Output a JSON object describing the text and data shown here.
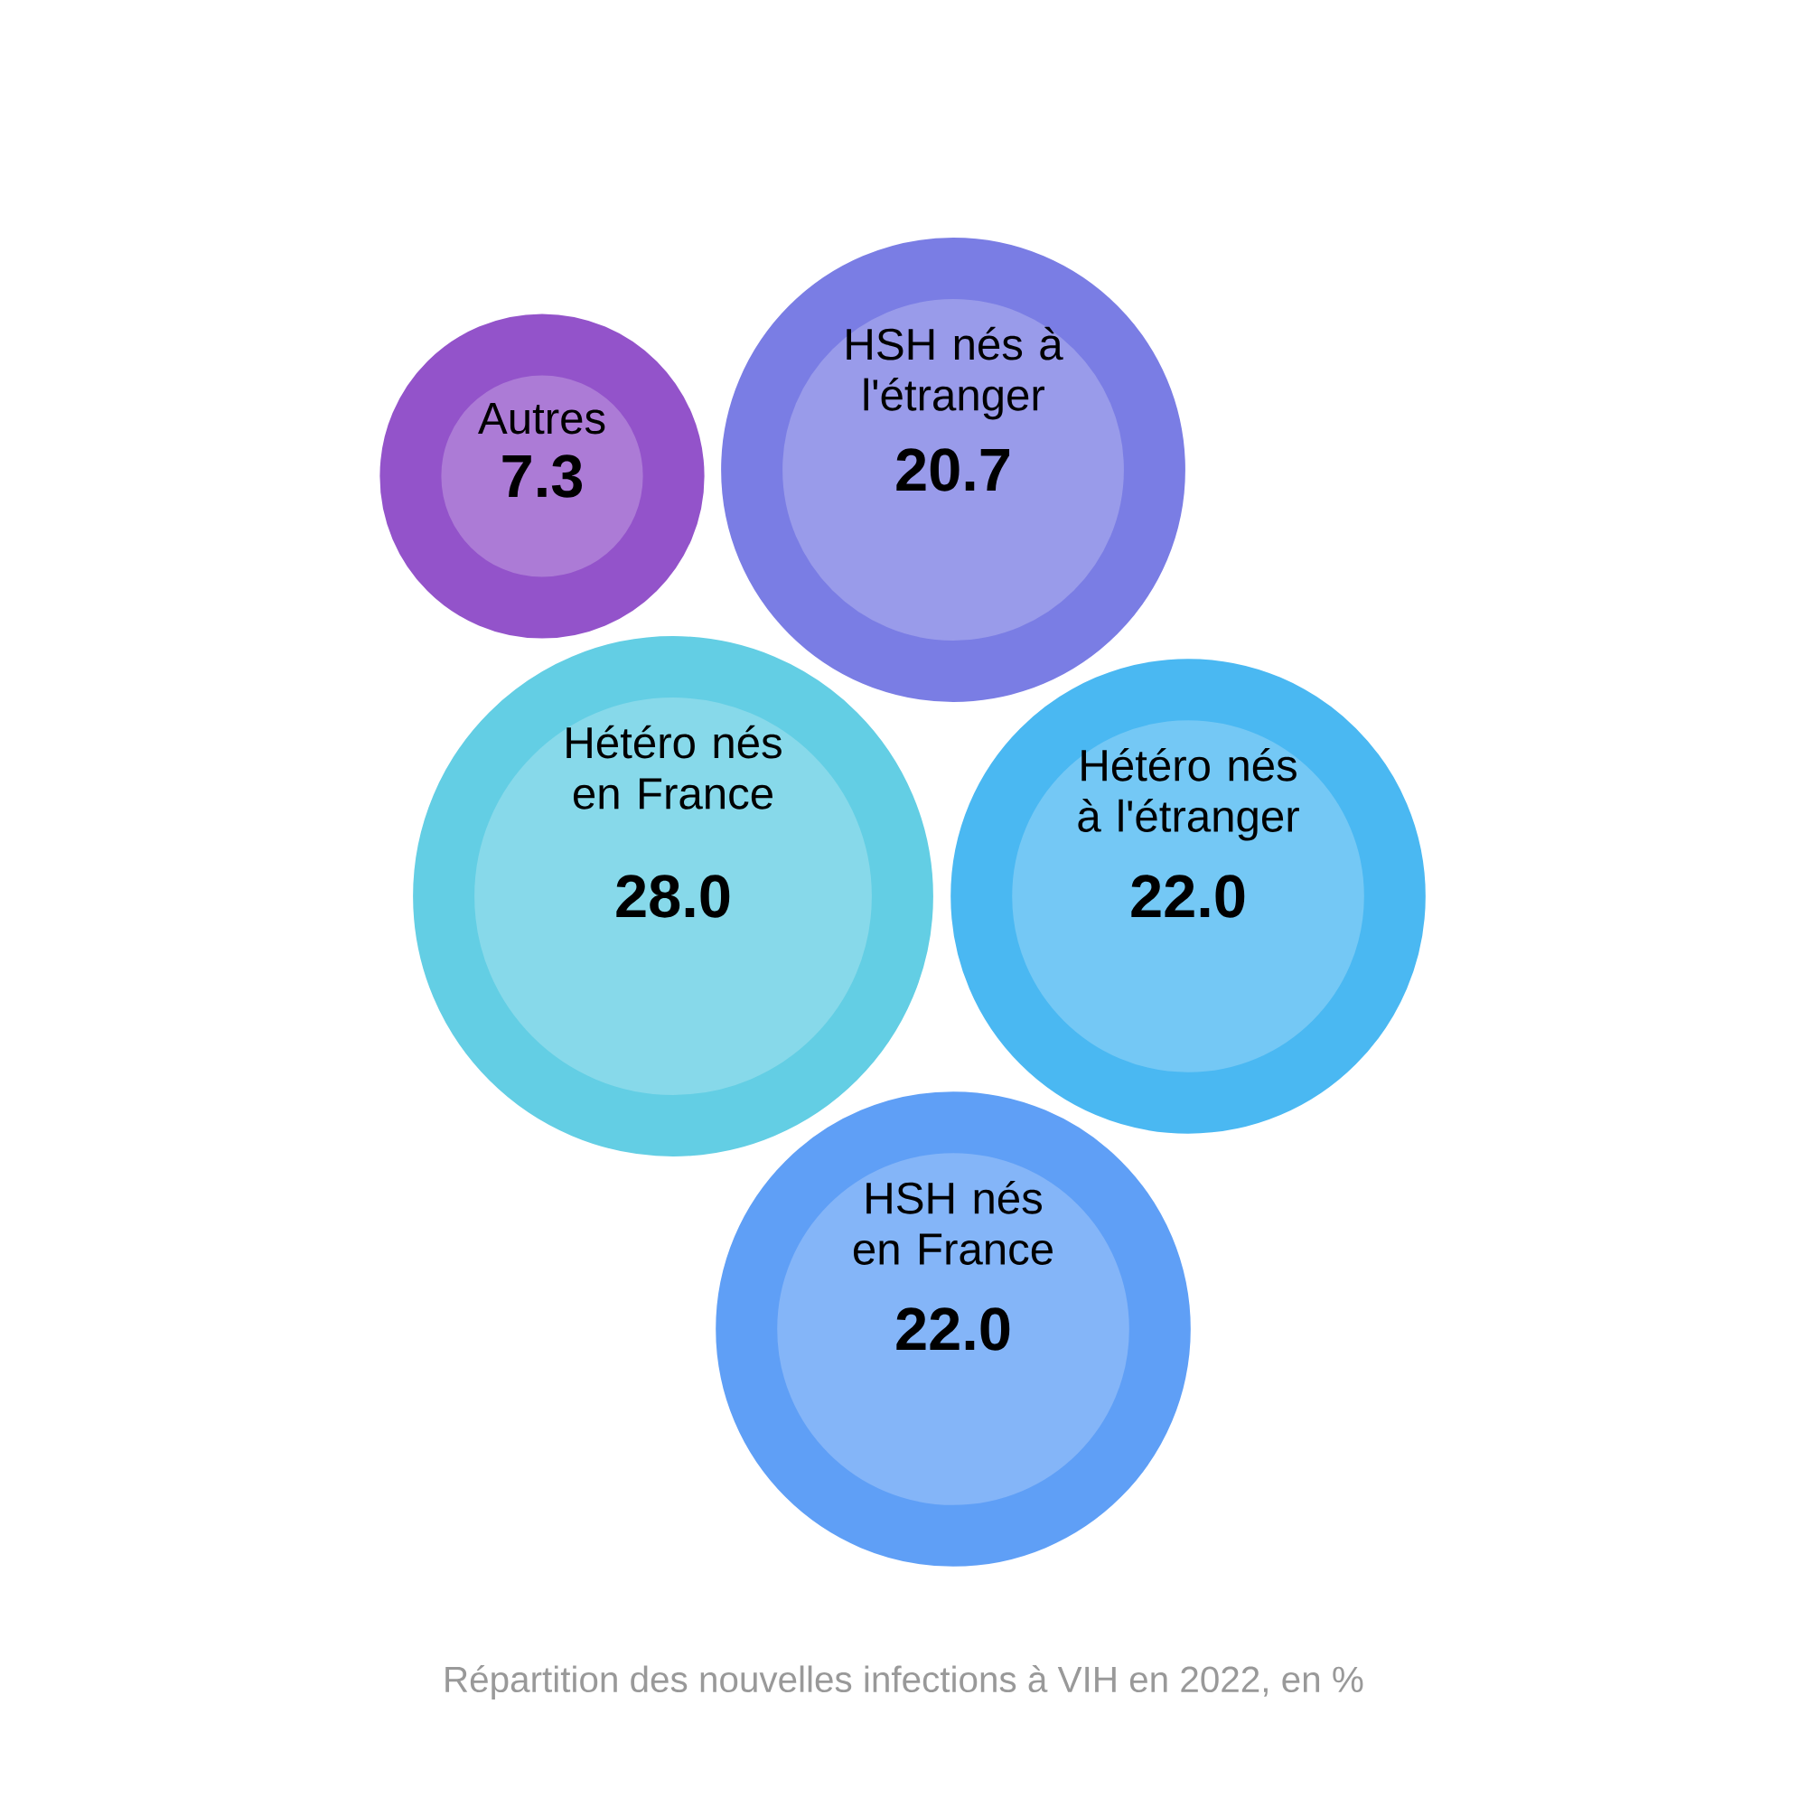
{
  "chart_data": {
    "type": "other",
    "categories": [
      "Autres",
      "HSH nés à l'étranger",
      "Hétéro nés en France",
      "Hétéro nés à l'étranger",
      "HSH nés en France"
    ],
    "values": [
      7.3,
      20.7,
      28.0,
      22.0,
      22.0
    ],
    "value_labels": [
      "7.3",
      "20.7",
      "28.0",
      "22.0",
      "22.0"
    ],
    "colors": [
      "#ac7bd6",
      "#999bea",
      "#87d9ea",
      "#74c8f5",
      "#84b5f8"
    ],
    "annotations": [
      "Répartition des nouvelles infections à VIH en 2022, en %"
    ]
  }
}
